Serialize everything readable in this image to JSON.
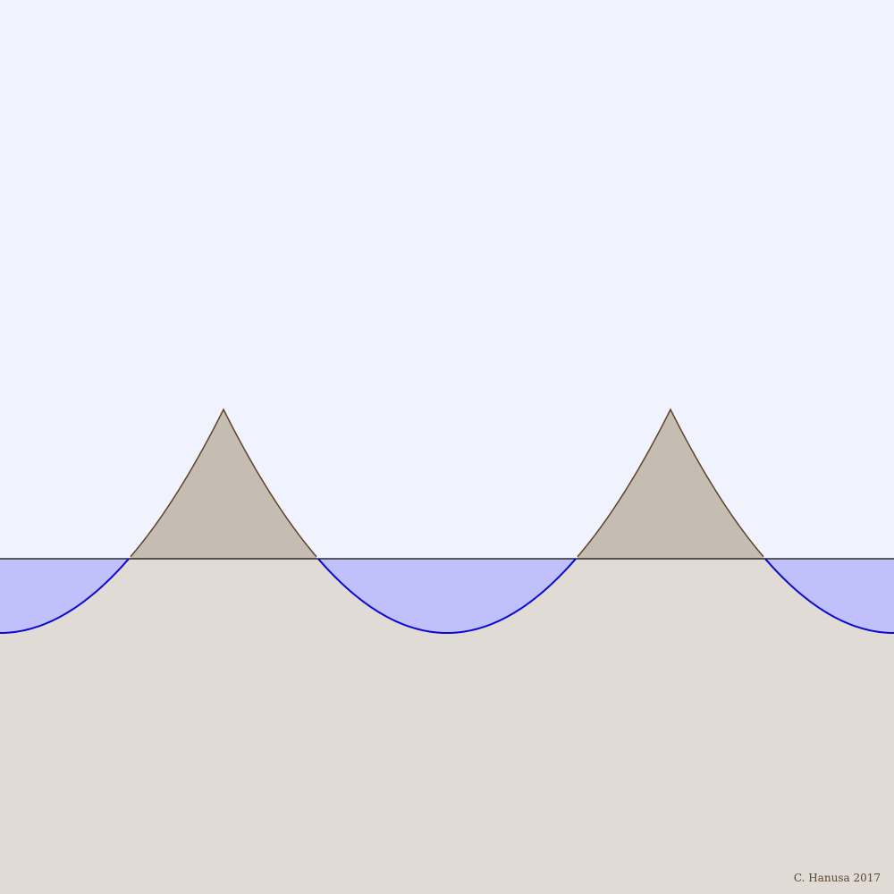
{
  "credit": "C. Hanusa 2017",
  "colors": {
    "sky": "#f0f2fe",
    "ground": "#e0dbd5",
    "water": "#c0c0fc",
    "water_stroke": "#0a0ad2",
    "peak": "#c6bdb2",
    "peak_stroke": "#5c4228",
    "baseline": "#2a2a2a"
  }
}
